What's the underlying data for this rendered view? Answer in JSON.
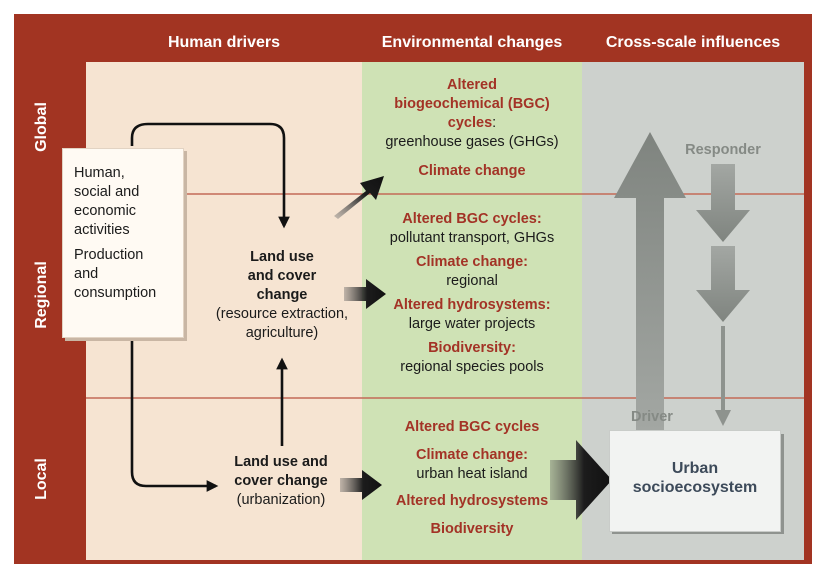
{
  "headers": {
    "human": "Human drivers",
    "env": "Environmental changes",
    "cross": "Cross-scale influences"
  },
  "scales": {
    "global": "Global",
    "regional": "Regional",
    "local": "Local"
  },
  "drivers_box": {
    "line1": "Human,",
    "line2": "social and",
    "line3": "economic",
    "line4": "activities",
    "line5": "Production",
    "line6": "and",
    "line7": "consumption"
  },
  "luc_regional": {
    "title1": "Land use",
    "title2": "and cover",
    "title3": "change",
    "sub1": "(resource extraction,",
    "sub2": "agriculture)"
  },
  "luc_local": {
    "title1": "Land use and",
    "title2": "cover change",
    "sub": "(urbanization)"
  },
  "global_env": {
    "bgc1": "Altered",
    "bgc2": "biogeochemical (BGC)",
    "bgc3": "cycles",
    "colon": ":",
    "bgc_sub": "greenhouse gases (GHGs)",
    "climate": "Climate change"
  },
  "regional_env": {
    "bgc": "Altered BGC cycles:",
    "bgc_sub": "pollutant transport, GHGs",
    "climate": "Climate change:",
    "climate_sub": "regional",
    "hydro": "Altered hydrosystems:",
    "hydro_sub": "large water projects",
    "bio": "Biodiversity:",
    "bio_sub": "regional species pools"
  },
  "local_env": {
    "bgc": "Altered BGC cycles",
    "climate": "Climate change:",
    "climate_sub": "urban heat island",
    "hydro": "Altered hydrosystems",
    "bio": "Biodiversity"
  },
  "cross": {
    "responder": "Responder",
    "driver": "Driver",
    "urban1": "Urban",
    "urban2": "socioecosystem"
  },
  "colors": {
    "frame": "#a23422",
    "human_bg": "#f6e4d2",
    "env_bg": "#cfe2b5",
    "cross_bg": "#cdd1cd",
    "emphasis_text": "#a33326",
    "arrow_gray": "#8e938e"
  }
}
